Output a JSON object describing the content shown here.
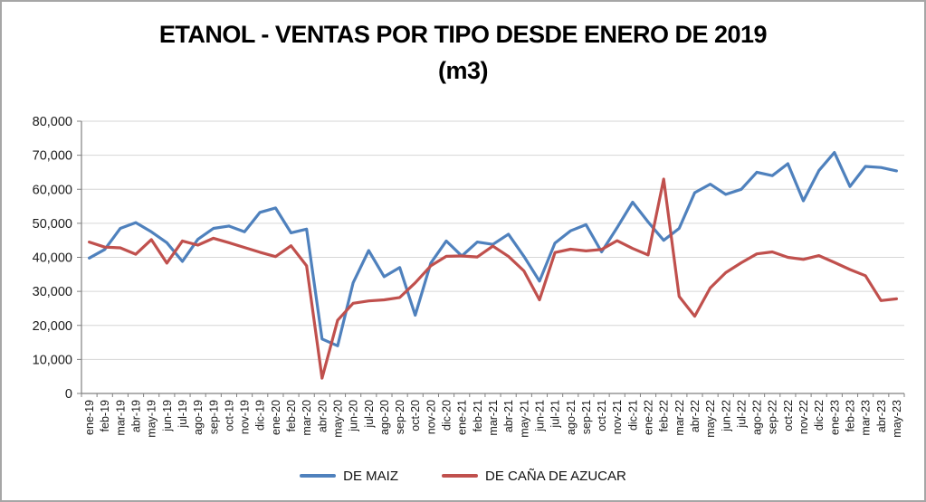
{
  "title": {
    "line1": "ETANOL - VENTAS POR TIPO DESDE ENERO DE 2019",
    "line2": "(m3)"
  },
  "colors": {
    "series_maiz": "#4F81BD",
    "series_cana": "#C0504D",
    "gridline": "#D6D6D6",
    "axis": "#808080",
    "tick_text": "#1a1a1a",
    "frame_border": "#a6a6a6",
    "background": "#ffffff"
  },
  "chart_data": {
    "type": "line",
    "title": "ETANOL - VENTAS POR TIPO DESDE ENERO DE 2019 (m3)",
    "xlabel": "",
    "ylabel": "",
    "ylim": [
      0,
      80000
    ],
    "ytick_step": 10000,
    "ytick_labels": [
      "0",
      "10,000",
      "20,000",
      "30,000",
      "40,000",
      "50,000",
      "60,000",
      "70,000",
      "80,000"
    ],
    "grid": true,
    "legend_position": "bottom",
    "categories": [
      "ene-19",
      "feb-19",
      "mar-19",
      "abr-19",
      "may-19",
      "jun-19",
      "jul-19",
      "ago-19",
      "sep-19",
      "oct-19",
      "nov-19",
      "dic-19",
      "ene-20",
      "feb-20",
      "mar-20",
      "abr-20",
      "may-20",
      "jun-20",
      "jul-20",
      "ago-20",
      "sep-20",
      "oct-20",
      "nov-20",
      "dic-20",
      "ene-21",
      "feb-21",
      "mar-21",
      "abr-21",
      "may-21",
      "jun-21",
      "jul-21",
      "ago-21",
      "sep-21",
      "oct-21",
      "nov-21",
      "dic-21",
      "ene-22",
      "feb-22",
      "mar-22",
      "abr-22",
      "may-22",
      "jun-22",
      "jul-22",
      "ago-22",
      "sep-22",
      "oct-22",
      "nov-22",
      "dic-22",
      "ene-23",
      "feb-23",
      "mar-23",
      "abr-23",
      "may-23"
    ],
    "series": [
      {
        "name": "DE MAIZ",
        "color": "#4F81BD",
        "values": [
          39800,
          42300,
          48500,
          50200,
          47500,
          44300,
          38800,
          45300,
          48500,
          49200,
          47500,
          53200,
          54500,
          47200,
          48300,
          16000,
          14000,
          32500,
          42000,
          34300,
          37000,
          23000,
          38300,
          44800,
          40400,
          44500,
          43800,
          46800,
          40300,
          33000,
          44200,
          47800,
          49600,
          41600,
          48700,
          56200,
          50400,
          45000,
          48500,
          59000,
          61500,
          58500,
          60000,
          65000,
          64000,
          67500,
          56600,
          65500,
          70800,
          60800,
          66700,
          66400,
          65400
        ]
      },
      {
        "name": "DE CAÑA DE AZUCAR",
        "color": "#C0504D",
        "values": [
          44500,
          43000,
          42800,
          40900,
          45200,
          38300,
          44800,
          43600,
          45600,
          44300,
          42900,
          41500,
          40200,
          43400,
          37500,
          4500,
          21500,
          26500,
          27200,
          27500,
          28200,
          32500,
          37500,
          40300,
          40400,
          40100,
          43300,
          40300,
          36000,
          27500,
          41400,
          42400,
          41900,
          42300,
          44900,
          42600,
          40700,
          63000,
          28500,
          22700,
          31000,
          35500,
          38400,
          41000,
          41600,
          40000,
          39400,
          40500,
          38500,
          36400,
          34600,
          27300,
          27800
        ]
      }
    ]
  }
}
